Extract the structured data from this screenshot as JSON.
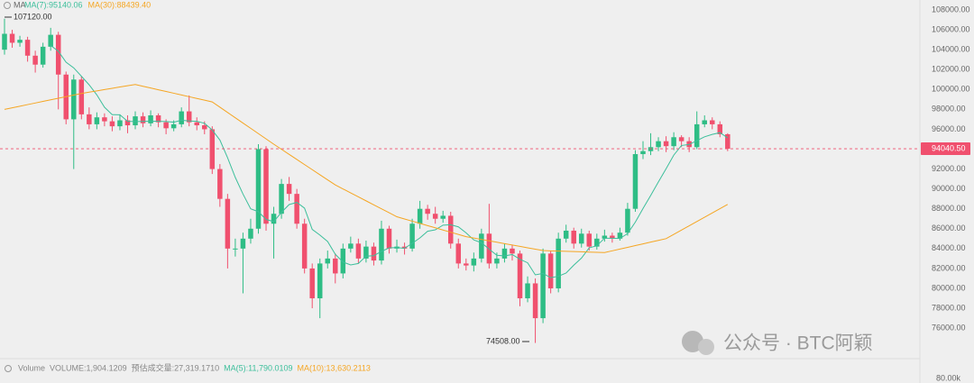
{
  "chart_data": {
    "type": "candlestick",
    "header": {
      "indicator": "MA"
    },
    "open": [
      104000,
      105600,
      104700,
      105000,
      103400,
      102500,
      104300,
      105500,
      101500,
      97000,
      101000,
      97500,
      96500,
      97200,
      96800,
      96300,
      96900,
      96400,
      97300,
      96600,
      97400,
      96700,
      96100,
      96500,
      97800,
      96700,
      96400,
      96000,
      92000,
      89000,
      84000,
      84000,
      85000,
      86000,
      94000,
      86500,
      87500,
      90500,
      89500,
      86500,
      82000,
      79000,
      82500,
      83000,
      81500,
      84000,
      84500,
      83000,
      84200,
      82800,
      86000,
      84000,
      84200,
      84000,
      86500,
      88000,
      87500,
      87000,
      87300,
      84500,
      82500,
      82300,
      83000,
      85500,
      82500,
      83000,
      84000,
      83500,
      79000,
      80500,
      77000,
      83500,
      80000,
      85000,
      85800,
      84500,
      85500,
      84200,
      85000,
      85300,
      85000,
      85600,
      88000,
      93500,
      93800,
      94200,
      94800,
      94300,
      95200,
      94800,
      94200,
      96500,
      96900,
      96500,
      95500
    ],
    "high": [
      107120,
      106000,
      105400,
      105300,
      103900,
      104700,
      106200,
      105800,
      101800,
      101500,
      101300,
      98200,
      97700,
      97600,
      97300,
      97500,
      97400,
      97800,
      97700,
      97900,
      97600,
      97000,
      96900,
      98200,
      99400,
      97200,
      96800,
      96300,
      92500,
      89500,
      85000,
      85600,
      87000,
      94500,
      94300,
      88200,
      91000,
      91200,
      90000,
      87000,
      82500,
      83000,
      83800,
      83500,
      84500,
      85200,
      85000,
      84800,
      84600,
      86800,
      86300,
      84900,
      84600,
      87000,
      88800,
      88400,
      88200,
      87800,
      87700,
      85000,
      83000,
      83600,
      86000,
      88500,
      83600,
      84500,
      84400,
      83800,
      81200,
      81000,
      84000,
      83800,
      85600,
      86400,
      86100,
      86000,
      85800,
      85500,
      85900,
      85600,
      86100,
      88600,
      93900,
      94800,
      95600,
      95200,
      95300,
      95700,
      95400,
      95200,
      97800,
      97400,
      97200,
      96800,
      95600
    ],
    "low": [
      103500,
      104200,
      104300,
      102800,
      101700,
      102200,
      103900,
      98000,
      96500,
      92000,
      97000,
      96000,
      96000,
      96300,
      95800,
      95900,
      95600,
      96000,
      96200,
      96300,
      96200,
      95500,
      95800,
      96200,
      96300,
      95900,
      95500,
      91500,
      88200,
      82000,
      83200,
      79500,
      84500,
      85500,
      85800,
      83000,
      87000,
      88800,
      86000,
      81500,
      78000,
      77000,
      82000,
      80500,
      81000,
      83600,
      82500,
      82600,
      82300,
      82400,
      83500,
      83600,
      83400,
      83700,
      86000,
      86900,
      86500,
      86600,
      84000,
      82000,
      81800,
      81700,
      82600,
      82000,
      82000,
      82600,
      82800,
      78200,
      78600,
      74508,
      76500,
      79500,
      79600,
      84600,
      84000,
      84100,
      83800,
      83900,
      84700,
      84600,
      84800,
      85300,
      87700,
      93000,
      93400,
      93800,
      93700,
      93900,
      94200,
      93700,
      94000,
      96200,
      96000,
      95200,
      93800
    ],
    "close": [
      105600,
      104700,
      105000,
      103400,
      102500,
      104300,
      105500,
      101500,
      97000,
      101000,
      97500,
      96500,
      97200,
      96800,
      96300,
      96900,
      96400,
      97300,
      96600,
      97400,
      96700,
      96100,
      96500,
      97800,
      96700,
      96400,
      96000,
      92000,
      89000,
      84000,
      84000,
      85000,
      86000,
      94000,
      86500,
      87500,
      90500,
      89500,
      86500,
      82000,
      79000,
      82500,
      83000,
      81500,
      84000,
      84500,
      83000,
      84200,
      82800,
      86000,
      84000,
      84200,
      84000,
      86500,
      88000,
      87500,
      87000,
      87300,
      84500,
      82500,
      82300,
      83000,
      85500,
      82500,
      83000,
      84000,
      83500,
      79000,
      80500,
      77000,
      83500,
      80000,
      85000,
      85800,
      84500,
      85500,
      84200,
      85000,
      85300,
      85000,
      85600,
      88000,
      93500,
      93800,
      94200,
      94800,
      94300,
      95200,
      94800,
      94200,
      96500,
      96900,
      96500,
      95500,
      94040.5
    ],
    "up_color": "#2ebd85",
    "down_color": "#f0506e",
    "series": [
      {
        "name": "MA(7):95140.06",
        "color": "#3cbf9b",
        "values": [
          null,
          null,
          null,
          null,
          null,
          null,
          104429,
          103843,
          102743,
          102171,
          101329,
          100471,
          99457,
          98214,
          97471,
          97457,
          96800,
          96771,
          96786,
          96814,
          96800,
          96771,
          96714,
          96914,
          96829,
          96800,
          96600,
          95929,
          94914,
          93129,
          91157,
          89486,
          88000,
          87714,
          86929,
          86714,
          87643,
          88429,
          88643,
          88071,
          85929,
          85357,
          84714,
          83429,
          82643,
          82357,
          82500,
          83243,
          83286,
          83714,
          84071,
          84100,
          84029,
          84529,
          85071,
          85743,
          85886,
          86357,
          86400,
          86186,
          85586,
          84871,
          84586,
          83943,
          83329,
          83257,
          83400,
          82929,
          82571,
          81357,
          81500,
          81071,
          81214,
          81543,
          82329,
          83043,
          84071,
          84286,
          85043,
          85043,
          85014,
          85514,
          86657,
          88029,
          89343,
          90700,
          92029,
          93400,
          94371,
          94471,
          94857,
          95243,
          95486,
          95657,
          95140.06
        ]
      },
      {
        "name": "MA(30):88439.40",
        "color": "#f5a623",
        "values": [
          98000,
          98160,
          98320,
          98480,
          98640,
          98800,
          98960,
          99120,
          99280,
          99440,
          99600,
          99730,
          99860,
          99990,
          100120,
          100250,
          100380,
          100500,
          100325,
          100150,
          99975,
          99800,
          99625,
          99450,
          99275,
          99100,
          98925,
          98750,
          98219,
          97688,
          97156,
          96625,
          96094,
          95563,
          95031,
          94500,
          93988,
          93475,
          92963,
          92450,
          91938,
          91425,
          90913,
          90400,
          90000,
          89600,
          89200,
          88800,
          88400,
          88000,
          87600,
          87200,
          86978,
          86756,
          86533,
          86311,
          86089,
          85867,
          85644,
          85422,
          85200,
          85060,
          84920,
          84780,
          84640,
          84500,
          84360,
          84220,
          84080,
          83940,
          83800,
          83775,
          83750,
          83725,
          83700,
          83675,
          83650,
          83625,
          83600,
          83775,
          83950,
          84125,
          84300,
          84475,
          84650,
          84825,
          85000,
          85430,
          85860,
          86290,
          86720,
          87150,
          87580,
          88010,
          88439.4
        ]
      }
    ],
    "last_price": {
      "value": 94040.5,
      "label": "94040.50"
    },
    "annotations": [
      {
        "text": "107120.00"
      },
      {
        "text": "74508.00"
      }
    ],
    "ylim": [
      73200,
      109000
    ],
    "yticks": [
      {
        "value": 76000,
        "label": "76000.00"
      },
      {
        "value": 78000,
        "label": "78000.00"
      },
      {
        "value": 80000,
        "label": "80000.00"
      },
      {
        "value": 82000,
        "label": "82000.00"
      },
      {
        "value": 84000,
        "label": "84000.00"
      },
      {
        "value": 86000,
        "label": "86000.00"
      },
      {
        "value": 88000,
        "label": "88000.00"
      },
      {
        "value": 90000,
        "label": "90000.00"
      },
      {
        "value": 92000,
        "label": "92000.00"
      },
      {
        "value": 94000,
        "label": "94000.00"
      },
      {
        "value": 96000,
        "label": "96000.00"
      },
      {
        "value": 98000,
        "label": "98000.00"
      },
      {
        "value": 100000,
        "label": "100000.00"
      },
      {
        "value": 102000,
        "label": "102000.00"
      },
      {
        "value": 104000,
        "label": "104000.00"
      },
      {
        "value": 106000,
        "label": "106000.00"
      },
      {
        "value": 108000,
        "label": "108000.00"
      }
    ],
    "grid": false,
    "volume_legend": [
      {
        "text": "Volume",
        "color": "#888888"
      },
      {
        "text": "VOLUME:1,904.1209",
        "color": "#888888"
      },
      {
        "text": "预估成交量:27,319.1710",
        "color": "#888888"
      },
      {
        "text": "MA(5):11,790.0109",
        "color": "#3cbf9b"
      },
      {
        "text": "MA(10):13,630.2113",
        "color": "#f5a623"
      }
    ],
    "volume_axis_label": "80.00k",
    "watermark": "公众号 · BTC阿颖"
  }
}
